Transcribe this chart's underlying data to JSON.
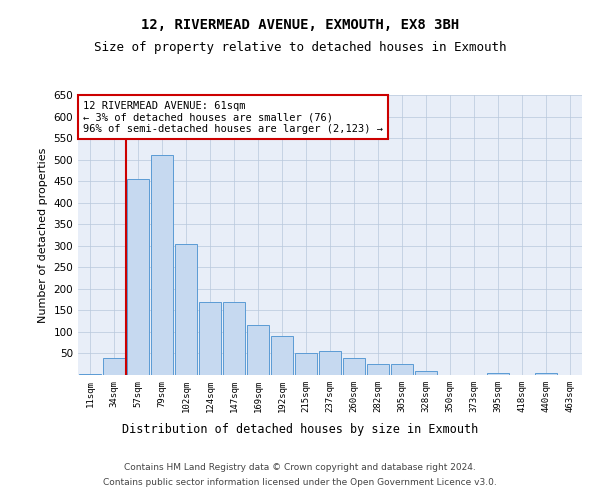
{
  "title": "12, RIVERMEAD AVENUE, EXMOUTH, EX8 3BH",
  "subtitle": "Size of property relative to detached houses in Exmouth",
  "xlabel": "Distribution of detached houses by size in Exmouth",
  "ylabel": "Number of detached properties",
  "categories": [
    "11sqm",
    "34sqm",
    "57sqm",
    "79sqm",
    "102sqm",
    "124sqm",
    "147sqm",
    "169sqm",
    "192sqm",
    "215sqm",
    "237sqm",
    "260sqm",
    "282sqm",
    "305sqm",
    "328sqm",
    "350sqm",
    "373sqm",
    "395sqm",
    "418sqm",
    "440sqm",
    "463sqm"
  ],
  "values": [
    3,
    40,
    455,
    510,
    305,
    170,
    170,
    115,
    90,
    50,
    55,
    40,
    25,
    25,
    10,
    0,
    0,
    5,
    0,
    5,
    0
  ],
  "bar_color": "#c6d9f0",
  "bar_edge_color": "#5b9bd5",
  "vline_x_index": 2,
  "vline_color": "#cc0000",
  "annotation_text": "12 RIVERMEAD AVENUE: 61sqm\n← 3% of detached houses are smaller (76)\n96% of semi-detached houses are larger (2,123) →",
  "annotation_box_color": "#ffffff",
  "annotation_box_edge_color": "#cc0000",
  "ylim": [
    0,
    650
  ],
  "yticks": [
    0,
    50,
    100,
    150,
    200,
    250,
    300,
    350,
    400,
    450,
    500,
    550,
    600,
    650
  ],
  "bg_color": "#e8eef8",
  "fig_bg_color": "#ffffff",
  "footer_line1": "Contains HM Land Registry data © Crown copyright and database right 2024.",
  "footer_line2": "Contains public sector information licensed under the Open Government Licence v3.0.",
  "title_fontsize": 10,
  "subtitle_fontsize": 9,
  "xlabel_fontsize": 8.5,
  "ylabel_fontsize": 8,
  "annotation_fontsize": 7.5,
  "footer_fontsize": 6.5
}
